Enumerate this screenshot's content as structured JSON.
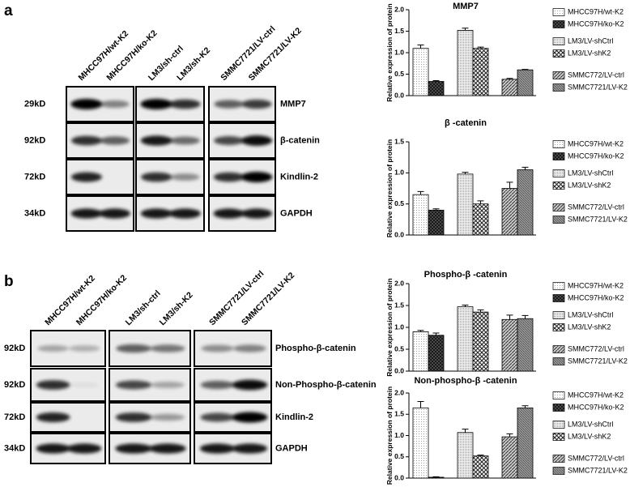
{
  "figure": {
    "panels": [
      {
        "letter": "a",
        "lanes": [
          "MHCC97H/wt-K2",
          "MHCC97H/ko-K2",
          "LM3/sh-ctrl",
          "LM3/sh-K2",
          "SMMC7721/LV-ctrl",
          "SMMC7721/LV-K2"
        ],
        "rows": [
          {
            "size": "29kD",
            "protein": "MMP7"
          },
          {
            "size": "92kD",
            "protein": "β-catenin"
          },
          {
            "size": "72kD",
            "protein": "Kindlin-2"
          },
          {
            "size": "34kD",
            "protein": "GAPDH"
          }
        ]
      },
      {
        "letter": "b",
        "lanes": [
          "MHCC97H/wt-K2",
          "MHCC97H/ko-K2",
          "LM3/sh-ctrl",
          "LM3/sh-K2",
          "SMMC7721/LV-ctrl",
          "SMMC7721/LV-K2"
        ],
        "rows": [
          {
            "size": "92kD",
            "protein": "Phospho-β-catenin"
          },
          {
            "size": "92kD",
            "protein": "Non-Phospho-β-catenin"
          },
          {
            "size": "72kD",
            "protein": "Kindlin-2"
          },
          {
            "size": "34kD",
            "protein": "GAPDH"
          }
        ]
      }
    ]
  },
  "chart_data": [
    {
      "type": "bar",
      "title": "MMP7",
      "ylabel": "Relative expression of protein",
      "ylim": [
        0,
        2
      ],
      "yticks": [
        {
          "value": 0,
          "label": "0.0"
        },
        0.5,
        {
          "value": 1,
          "label": "1.0"
        },
        1.5,
        {
          "value": 2,
          "label": "2.0"
        }
      ],
      "series": [
        {
          "name": "MHCC97H/wt-K2",
          "values": [
            1.1
          ],
          "errors": [
            0.08
          ]
        },
        {
          "name": "MHCC97H/ko-K2",
          "values": [
            0.33
          ],
          "errors": [
            0.02
          ]
        },
        {
          "name": "LM3/LV-shCtrl",
          "values": [
            1.52
          ],
          "errors": [
            0.05
          ]
        },
        {
          "name": "LM3/LV-shK2",
          "values": [
            1.1
          ],
          "errors": [
            0.03
          ]
        },
        {
          "name": "SMMC772/LV-ctrl",
          "values": [
            0.38
          ],
          "errors": [
            0.02
          ]
        },
        {
          "name": "SMMC7721/LV-K2",
          "values": [
            0.6
          ],
          "errors": [
            0.01
          ]
        }
      ]
    },
    {
      "type": "bar",
      "title": "β -catenin",
      "ylabel": "Relative expression of protein",
      "ylim": [
        0,
        1.5
      ],
      "yticks": [
        {
          "value": 0,
          "label": "0.0"
        },
        0.5,
        {
          "value": 1,
          "label": "1.0"
        },
        1.5
      ],
      "series": [
        {
          "name": "MHCC97H/wt-K2",
          "values": [
            0.65
          ],
          "errors": [
            0.05
          ]
        },
        {
          "name": "MHCC97H/ko-K2",
          "values": [
            0.4
          ],
          "errors": [
            0.02
          ]
        },
        {
          "name": "LM3/LV-shCtrl",
          "values": [
            0.98
          ],
          "errors": [
            0.03
          ]
        },
        {
          "name": "LM3/LV-shK2",
          "values": [
            0.5
          ],
          "errors": [
            0.05
          ]
        },
        {
          "name": "SMMC772/LV-ctrl",
          "values": [
            0.75
          ],
          "errors": [
            0.1
          ]
        },
        {
          "name": "SMMC7721/LV-K2",
          "values": [
            1.05
          ],
          "errors": [
            0.04
          ]
        }
      ]
    },
    {
      "type": "bar",
      "title": "Phospho-β -catenin",
      "ylabel": "Relative expression of protein",
      "ylim": [
        0,
        2
      ],
      "yticks": [
        {
          "value": 0,
          "label": "0.0"
        },
        0.5,
        {
          "value": 1,
          "label": "1.0"
        },
        1.5,
        {
          "value": 2,
          "label": "2.0"
        }
      ],
      "series": [
        {
          "name": "MHCC97H/wt-K2",
          "values": [
            0.9
          ],
          "errors": [
            0.03
          ]
        },
        {
          "name": "MHCC97H/ko-K2",
          "values": [
            0.82
          ],
          "errors": [
            0.05
          ]
        },
        {
          "name": "LM3/LV-shCtrl",
          "values": [
            1.47
          ],
          "errors": [
            0.04
          ]
        },
        {
          "name": "LM3/LV-shK2",
          "values": [
            1.35
          ],
          "errors": [
            0.05
          ]
        },
        {
          "name": "SMMC772/LV-ctrl",
          "values": [
            1.18
          ],
          "errors": [
            0.1
          ]
        },
        {
          "name": "SMMC7721/LV-K2",
          "values": [
            1.2
          ],
          "errors": [
            0.07
          ]
        }
      ]
    },
    {
      "type": "bar",
      "title": "Non-phospho-β -catenin",
      "ylabel": "Relative expression of protein",
      "ylim": [
        0,
        2
      ],
      "yticks": [
        {
          "value": 0,
          "label": "0.0"
        },
        0.5,
        {
          "value": 1,
          "label": "1.0"
        },
        1.5,
        {
          "value": 2,
          "label": "2.0"
        }
      ],
      "series": [
        {
          "name": "MHCC97H/wt-K2",
          "values": [
            1.65
          ],
          "errors": [
            0.15
          ]
        },
        {
          "name": "MHCC97H/ko-K2",
          "values": [
            0.02
          ],
          "errors": [
            0.01
          ]
        },
        {
          "name": "LM3/LV-shCtrl",
          "values": [
            1.07
          ],
          "errors": [
            0.08
          ]
        },
        {
          "name": "LM3/LV-shK2",
          "values": [
            0.52
          ],
          "errors": [
            0.02
          ]
        },
        {
          "name": "SMMC772/LV-ctrl",
          "values": [
            0.97
          ],
          "errors": [
            0.07
          ]
        },
        {
          "name": "SMMC7721/LV-K2",
          "values": [
            1.65
          ],
          "errors": [
            0.05
          ]
        }
      ]
    }
  ]
}
